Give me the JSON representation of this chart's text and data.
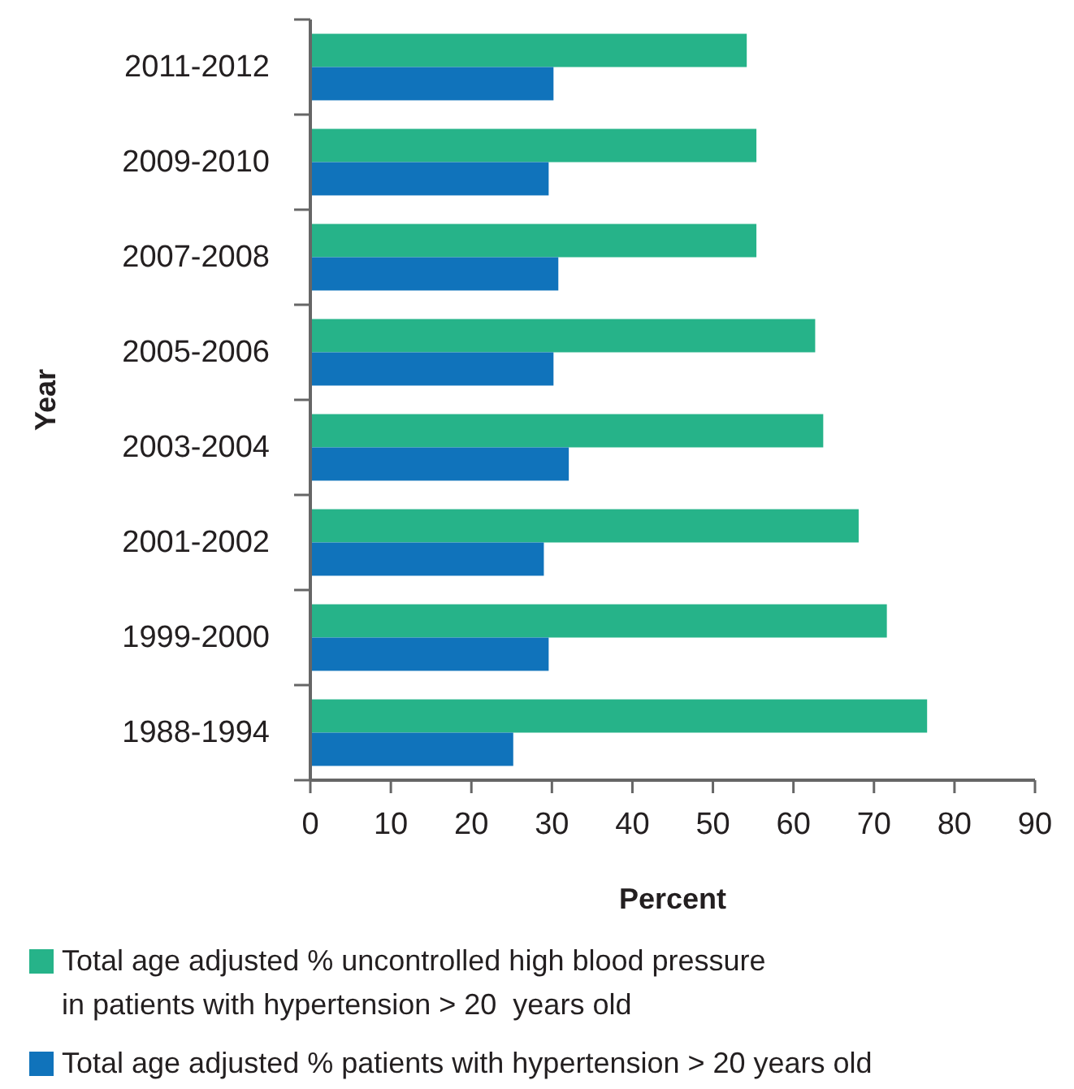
{
  "chart_data": {
    "type": "bar",
    "orientation": "horizontal",
    "xlabel": "Percent",
    "ylabel": "Year",
    "categories": [
      "2011-2012",
      "2009-2010",
      "2007-2008",
      "2005-2006",
      "2003-2004",
      "2001-2002",
      "1999-2000",
      "1988-1994"
    ],
    "series": [
      {
        "name": "Total age adjusted % uncontrolled high blood pressure\nin patients with hypertension > 20  years old",
        "color": "#26b389",
        "values": [
          54.2,
          55.4,
          55.4,
          62.7,
          63.7,
          68.1,
          71.6,
          76.6
        ]
      },
      {
        "name": "Total age adjusted % patients with hypertension > 20 years old",
        "color": "#1073bb",
        "values": [
          30.2,
          29.6,
          30.8,
          30.2,
          32.1,
          29.0,
          29.6,
          25.2
        ]
      }
    ],
    "xlim": [
      0,
      90
    ],
    "xticks": [
      0,
      10,
      20,
      30,
      40,
      50,
      60,
      70,
      80,
      90
    ],
    "grid": false,
    "legend": "bottom"
  }
}
